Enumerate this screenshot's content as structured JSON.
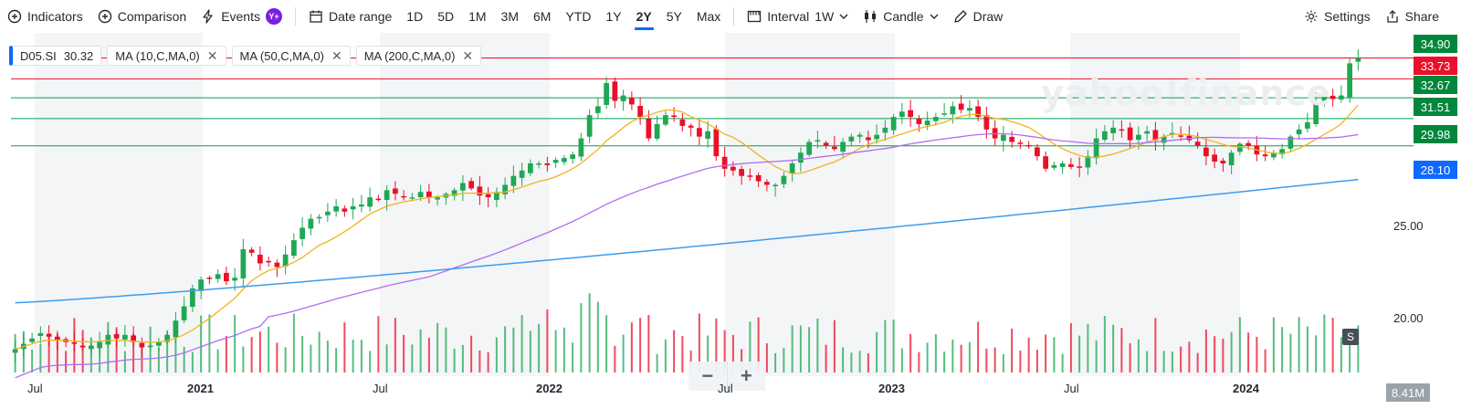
{
  "toolbar": {
    "indicators": "Indicators",
    "comparison": "Comparison",
    "events": "Events",
    "events_badge": "Y+",
    "date_range": "Date range",
    "ranges": [
      "1D",
      "5D",
      "1M",
      "3M",
      "6M",
      "YTD",
      "1Y",
      "2Y",
      "5Y",
      "Max"
    ],
    "active_range": "2Y",
    "interval_label": "Interval",
    "interval_value": "1W",
    "chart_type": "Candle",
    "draw": "Draw",
    "settings": "Settings",
    "share": "Share"
  },
  "legend": {
    "symbol": "D05.SI",
    "last": "30.32",
    "ma10": "MA (10,C,MA,0)",
    "ma50": "MA (50,C,MA,0)",
    "ma200": "MA (200,C,MA,0)"
  },
  "watermark": "yahoo!finance",
  "price_tags": [
    {
      "value": "34.90",
      "color": "#00873c"
    },
    {
      "value": "33.73",
      "color": "#eb0f29"
    },
    {
      "value": "32.67",
      "color": "#00873c"
    },
    {
      "value": "31.51",
      "color": "#00873c"
    },
    {
      "value": "29.98",
      "color": "#00873c"
    },
    {
      "value": "28.10",
      "color": "#0f69ff"
    }
  ],
  "y_axis_labels": [
    "25.00",
    "20.00"
  ],
  "volume_label": "8.41M",
  "s_badge": "S",
  "x_axis_labels": [
    {
      "text": "Jul",
      "bold": false
    },
    {
      "text": "2021",
      "bold": true
    },
    {
      "text": "Jul",
      "bold": false
    },
    {
      "text": "2022",
      "bold": true
    },
    {
      "text": "Jul",
      "bold": false
    },
    {
      "text": "2023",
      "bold": true
    },
    {
      "text": "Jul",
      "bold": false
    },
    {
      "text": "2024",
      "bold": true
    }
  ],
  "zoom": {
    "minus": "−",
    "plus": "+"
  },
  "colors": {
    "up": "#1ea854",
    "down": "#eb0f29",
    "ma10": "#f2b321",
    "ma50": "#b36bf2",
    "ma200": "#3c9cf0",
    "hline_red": "#eb0f29",
    "hline_green": "#00a050"
  },
  "chart_data": {
    "type": "candlestick",
    "interval": "1W",
    "range": "2Y",
    "y_range": [
      17.5,
      36
    ],
    "horizontal_levels": [
      34.9,
      33.73,
      32.67,
      31.51,
      29.98
    ],
    "close_series_approx": [
      18.6,
      18.9,
      19.2,
      19.5,
      19.3,
      19.1,
      19.0,
      18.9,
      18.7,
      18.8,
      19.0,
      19.4,
      19.2,
      19.4,
      19.0,
      18.7,
      18.8,
      19.0,
      19.4,
      20.2,
      21.0,
      22.0,
      22.5,
      22.6,
      22.8,
      22.4,
      22.6,
      24.2,
      24.0,
      23.4,
      23.5,
      23.2,
      23.9,
      24.7,
      25.4,
      25.9,
      26.0,
      26.3,
      26.6,
      26.3,
      26.6,
      26.7,
      27.1,
      27.0,
      27.5,
      27.3,
      27.1,
      27.1,
      27.4,
      27.1,
      27.1,
      27.3,
      27.5,
      27.9,
      27.6,
      27.2,
      27.1,
      27.4,
      27.8,
      28.3,
      28.6,
      29.0,
      29.0,
      28.9,
      29.2,
      29.3,
      29.5,
      30.4,
      31.7,
      32.2,
      33.5,
      32.5,
      32.8,
      32.3,
      31.6,
      30.4,
      31.2,
      31.7,
      31.6,
      31.1,
      31.0,
      30.5,
      30.8,
      29.4,
      28.7,
      28.6,
      28.3,
      28.3,
      28.0,
      27.8,
      27.8,
      28.3,
      29.0,
      29.6,
      30.2,
      30.3,
      30.0,
      29.8,
      30.2,
      30.5,
      30.6,
      30.3,
      30.6,
      31.0,
      31.6,
      31.9,
      31.6,
      31.2,
      31.4,
      31.6,
      31.8,
      32.2,
      32.0,
      32.1,
      31.6,
      30.9,
      30.4,
      30.6,
      30.2,
      30.1,
      30.0,
      29.4,
      28.7,
      28.9,
      29.0,
      28.8,
      28.8,
      29.4,
      30.4,
      30.8,
      31.0,
      30.9,
      30.3,
      30.6,
      30.8,
      30.3,
      30.5,
      30.7,
      30.5,
      30.3,
      30.0,
      29.4,
      29.1,
      29.0,
      29.6,
      30.1,
      30.0,
      29.5,
      29.4,
      29.6,
      29.8,
      30.5,
      30.9,
      31.3,
      32.4,
      32.9,
      32.6,
      32.8,
      34.6,
      34.9
    ],
    "ma200_start": 21.2,
    "ma200_end": 28.1,
    "last_volume": "8.41M"
  }
}
